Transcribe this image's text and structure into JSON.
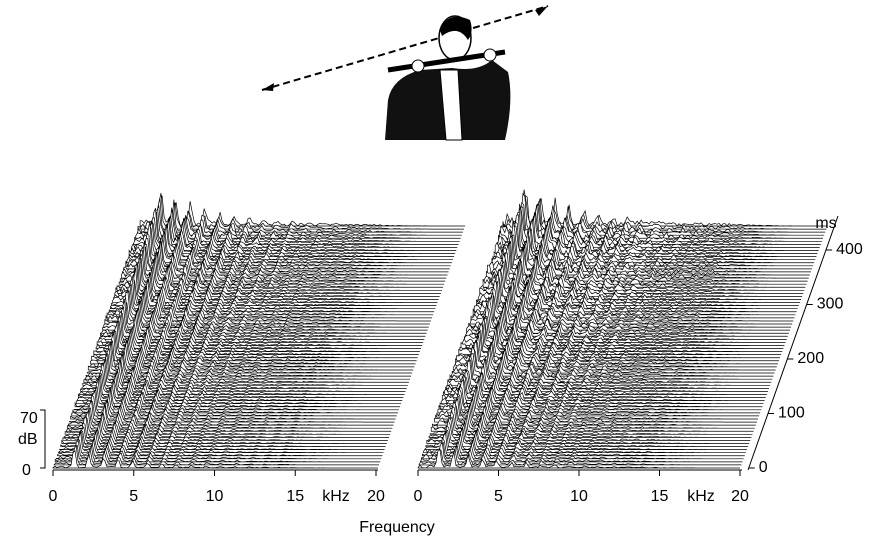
{
  "left_panel": {
    "x_ticks": [
      "0",
      "5",
      "10",
      "15",
      "20"
    ],
    "x_unit": "kHz"
  },
  "right_panel": {
    "x_ticks": [
      "0",
      "5",
      "10",
      "15",
      "20"
    ],
    "x_unit": "kHz",
    "time_ticks": [
      "0",
      "100",
      "200",
      "300",
      "400"
    ],
    "time_unit": "ms"
  },
  "level_axis": {
    "top": "70",
    "unit": "dB",
    "bottom": "0"
  },
  "x_axis_title": "Frequency"
}
